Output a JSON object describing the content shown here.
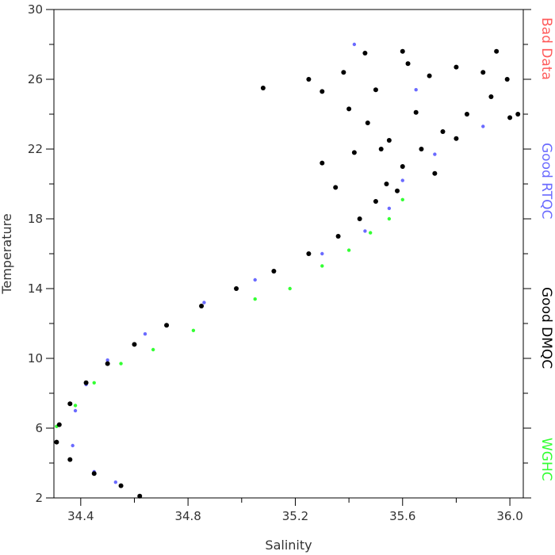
{
  "chart_data": {
    "type": "scatter",
    "xlabel": "Salinity",
    "ylabel": "Temperature",
    "xlim": [
      34.3,
      36.05
    ],
    "ylim": [
      2,
      30
    ],
    "x_ticks": [
      34.4,
      34.8,
      35.2,
      35.6,
      36.0
    ],
    "x_tick_labels": [
      "34.4",
      "34.8",
      "35.2",
      "35.6",
      "36.0"
    ],
    "y_ticks": [
      2,
      6,
      10,
      14,
      18,
      22,
      26,
      30
    ],
    "y_tick_labels": [
      "2",
      "6",
      "10",
      "14",
      "18",
      "22",
      "26",
      "30"
    ],
    "grid": false,
    "legend_position": "right",
    "series": [
      {
        "name": "Bad Data",
        "color": "#ff5a5a",
        "points": []
      },
      {
        "name": "Good RTQC",
        "color": "#6a6aff",
        "points": [
          [
            34.53,
            2.9
          ],
          [
            34.45,
            3.5
          ],
          [
            34.37,
            5.0
          ],
          [
            34.38,
            7.0
          ],
          [
            34.42,
            8.5
          ],
          [
            34.5,
            9.9
          ],
          [
            34.64,
            11.4
          ],
          [
            34.86,
            13.2
          ],
          [
            35.05,
            14.5
          ],
          [
            35.3,
            16.0
          ],
          [
            35.46,
            17.3
          ],
          [
            35.55,
            18.6
          ],
          [
            35.6,
            20.2
          ],
          [
            35.72,
            21.7
          ],
          [
            35.9,
            23.3
          ],
          [
            35.65,
            25.4
          ],
          [
            35.42,
            28.0
          ]
        ]
      },
      {
        "name": "Good DMQC",
        "color": "#000000",
        "points": [
          [
            34.62,
            2.1
          ],
          [
            34.55,
            2.7
          ],
          [
            34.45,
            3.4
          ],
          [
            34.36,
            4.2
          ],
          [
            34.31,
            5.2
          ],
          [
            34.32,
            6.2
          ],
          [
            34.36,
            7.4
          ],
          [
            34.42,
            8.6
          ],
          [
            34.5,
            9.7
          ],
          [
            34.6,
            10.8
          ],
          [
            34.72,
            11.9
          ],
          [
            34.85,
            13.0
          ],
          [
            34.98,
            14.0
          ],
          [
            35.12,
            15.0
          ],
          [
            35.25,
            16.0
          ],
          [
            35.36,
            17.0
          ],
          [
            35.44,
            18.0
          ],
          [
            35.5,
            19.0
          ],
          [
            35.54,
            20.0
          ],
          [
            35.6,
            21.0
          ],
          [
            35.67,
            22.0
          ],
          [
            35.75,
            23.0
          ],
          [
            35.84,
            24.0
          ],
          [
            35.93,
            25.0
          ],
          [
            35.99,
            26.0
          ],
          [
            35.55,
            22.5
          ],
          [
            35.65,
            24.1
          ],
          [
            35.5,
            25.4
          ],
          [
            35.38,
            26.4
          ],
          [
            35.62,
            26.9
          ],
          [
            35.8,
            26.7
          ],
          [
            35.9,
            26.4
          ],
          [
            35.3,
            25.3
          ],
          [
            35.25,
            26.0
          ],
          [
            35.08,
            25.5
          ],
          [
            35.46,
            27.5
          ],
          [
            35.6,
            27.6
          ],
          [
            36.03,
            24.0
          ],
          [
            35.4,
            24.3
          ],
          [
            35.3,
            21.2
          ],
          [
            35.47,
            23.5
          ],
          [
            35.52,
            22.0
          ],
          [
            35.72,
            20.6
          ],
          [
            35.58,
            19.6
          ],
          [
            35.8,
            22.6
          ],
          [
            36.0,
            23.8
          ],
          [
            35.95,
            27.6
          ],
          [
            35.7,
            26.2
          ],
          [
            35.35,
            19.8
          ],
          [
            35.42,
            21.8
          ]
        ]
      },
      {
        "name": "WGHC",
        "color": "#33ff33",
        "points": [
          [
            34.31,
            6.1
          ],
          [
            34.38,
            7.3
          ],
          [
            34.45,
            8.6
          ],
          [
            34.55,
            9.7
          ],
          [
            34.67,
            10.5
          ],
          [
            34.82,
            11.6
          ],
          [
            35.05,
            13.4
          ],
          [
            35.18,
            14.0
          ],
          [
            35.3,
            15.3
          ],
          [
            35.4,
            16.2
          ],
          [
            35.48,
            17.2
          ],
          [
            35.55,
            18.0
          ],
          [
            35.6,
            19.1
          ]
        ]
      }
    ]
  }
}
